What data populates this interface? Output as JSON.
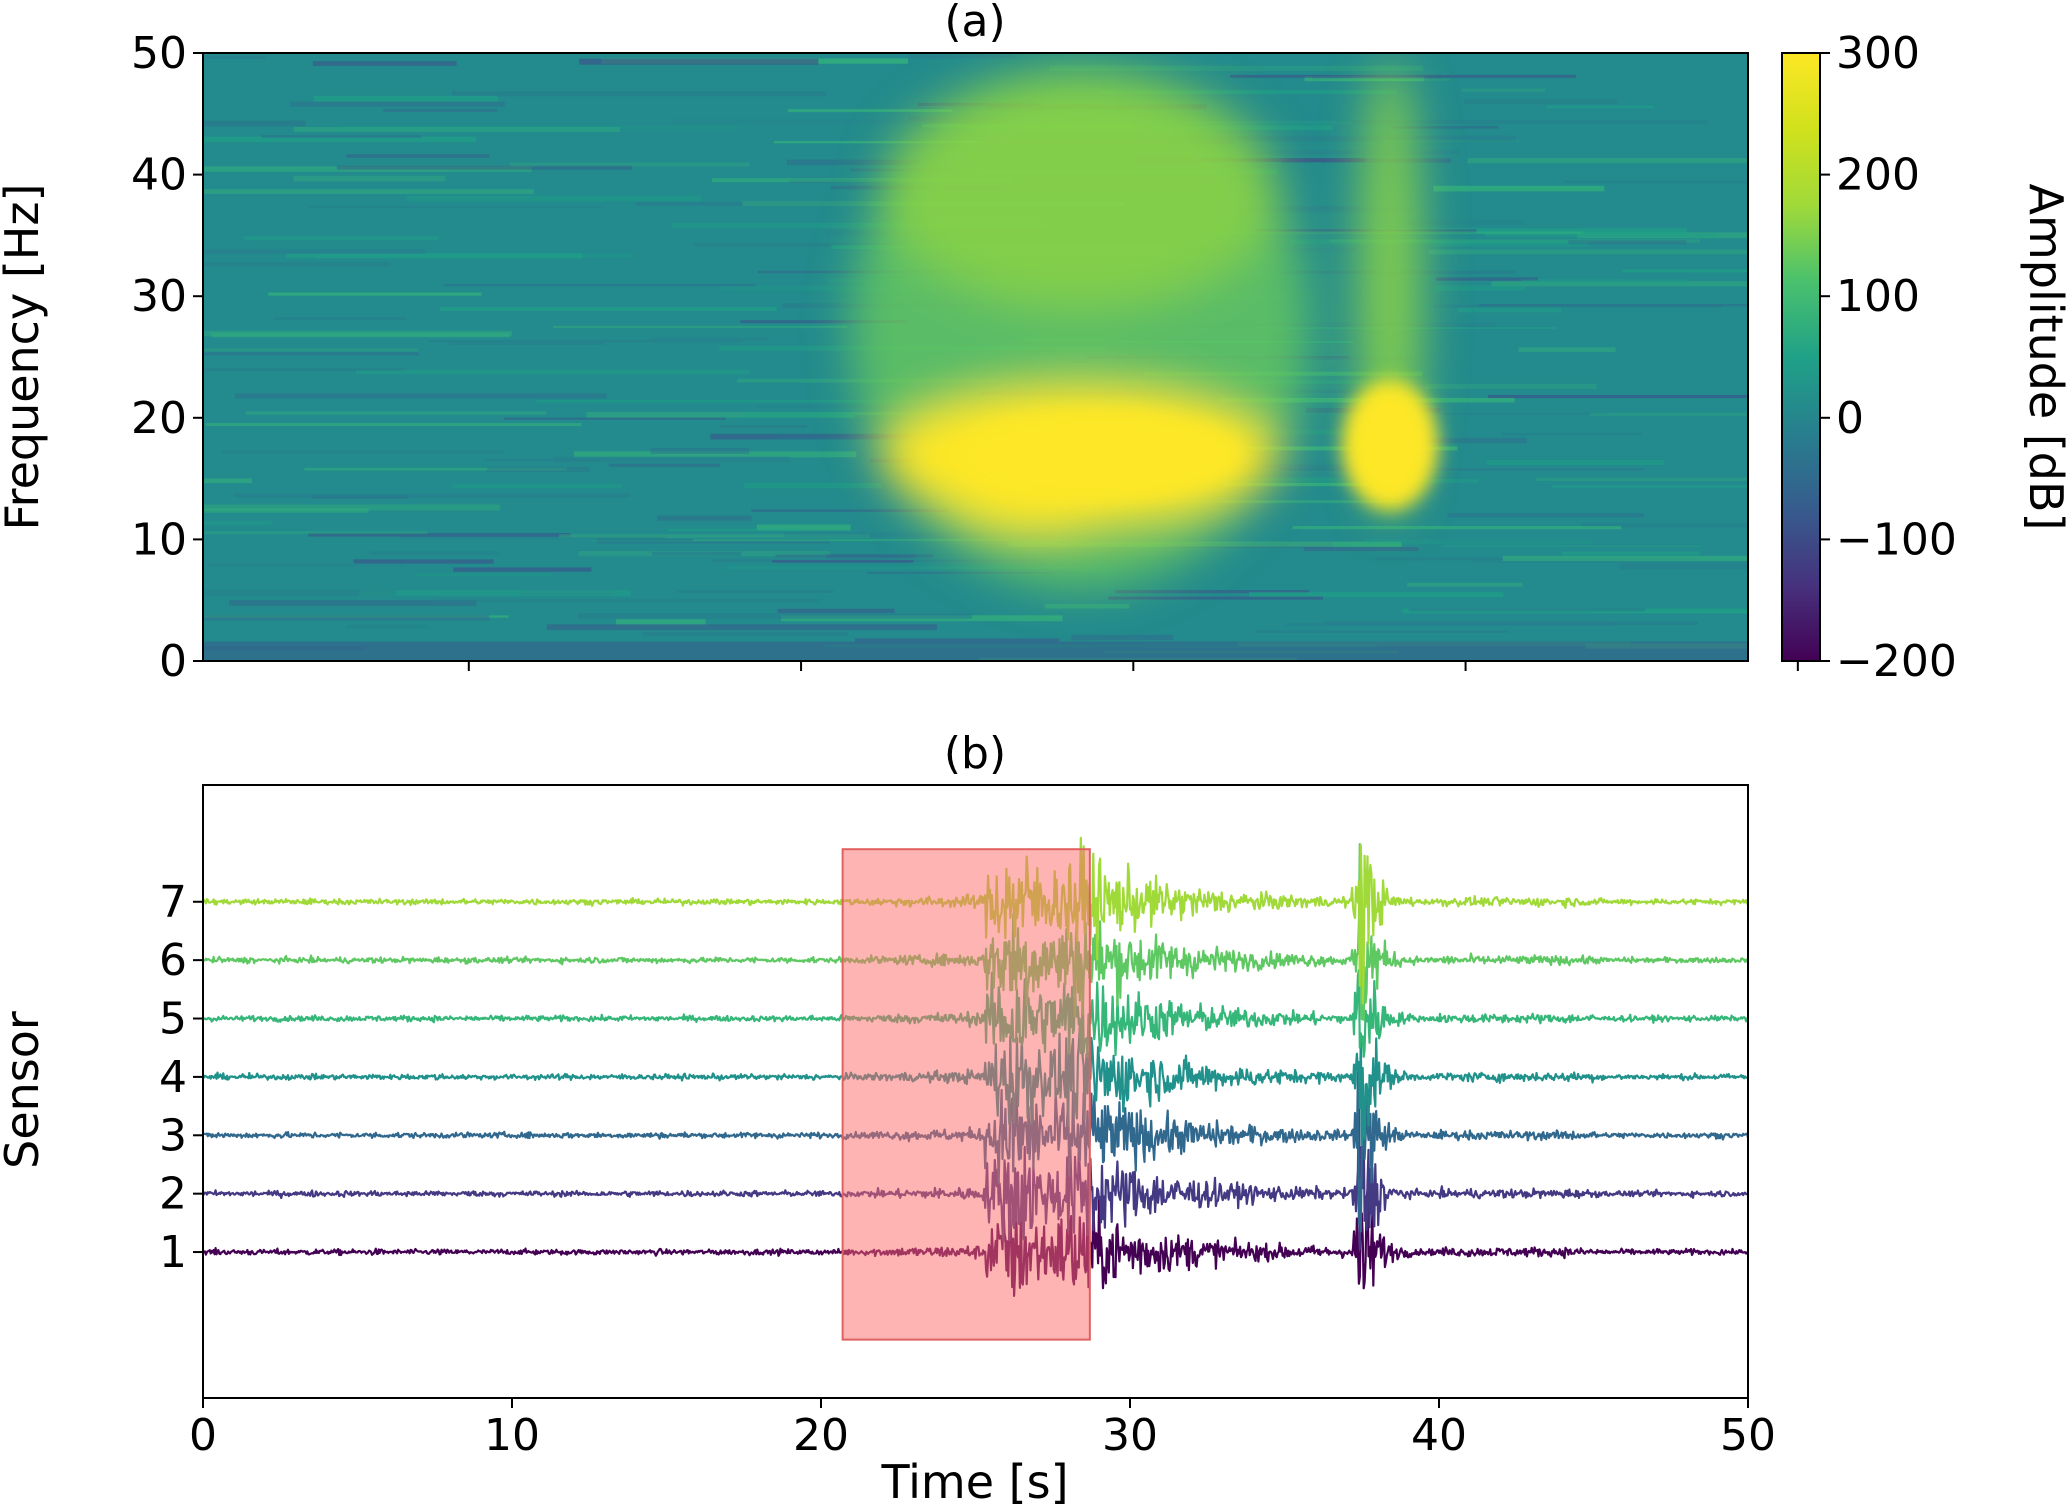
{
  "chart_data": [
    {
      "type": "heatmap",
      "title": "(a)",
      "ylabel": "Frequency [Hz]",
      "xlabel": "",
      "xlim": [
        0,
        50
      ],
      "ylim": [
        0,
        50
      ],
      "yticks": [
        "0",
        "10",
        "20",
        "30",
        "40",
        "50"
      ],
      "colorbar": {
        "label": "Amplitude [dB]",
        "range": [
          -200,
          300
        ],
        "ticks": [
          "300",
          "200",
          "100",
          "0",
          "−100",
          "−200"
        ],
        "colormap": "viridis"
      },
      "hotspots": [
        {
          "time": 24.5,
          "freq": 15.0,
          "amplitude": 300
        },
        {
          "time": 28.0,
          "freq": 14.0,
          "amplitude": 300
        },
        {
          "time": 38.5,
          "freq": 17.0,
          "amplitude": 300
        },
        {
          "time": 27.0,
          "freq": 35.0,
          "amplitude": 220
        },
        {
          "time": 38.2,
          "freq": 38.0,
          "amplitude": 200
        }
      ]
    },
    {
      "type": "line",
      "title": "(b)",
      "xlabel": "Time [s]",
      "ylabel": "Sensor",
      "xlim": [
        0,
        50
      ],
      "xticks": [
        "0",
        "10",
        "20",
        "30",
        "40",
        "50"
      ],
      "yticks": [
        "1",
        "2",
        "3",
        "4",
        "5",
        "6",
        "7"
      ],
      "series": [
        {
          "name": "1",
          "color": "#440154"
        },
        {
          "name": "2",
          "color": "#443983"
        },
        {
          "name": "3",
          "color": "#31688e"
        },
        {
          "name": "4",
          "color": "#21918c"
        },
        {
          "name": "5",
          "color": "#35b779"
        },
        {
          "name": "6",
          "color": "#5ec962"
        },
        {
          "name": "7",
          "color": "#a0da39"
        }
      ],
      "events": [
        {
          "time_start": 25.3,
          "time_end": 29.5,
          "peak_amplitude": 0.9
        },
        {
          "time": 37.4,
          "peak_amplitude": 2.2
        }
      ],
      "highlight": {
        "x_start": 20.7,
        "x_end": 28.7,
        "color": "#ff6a6a",
        "opacity": 0.5
      }
    }
  ]
}
